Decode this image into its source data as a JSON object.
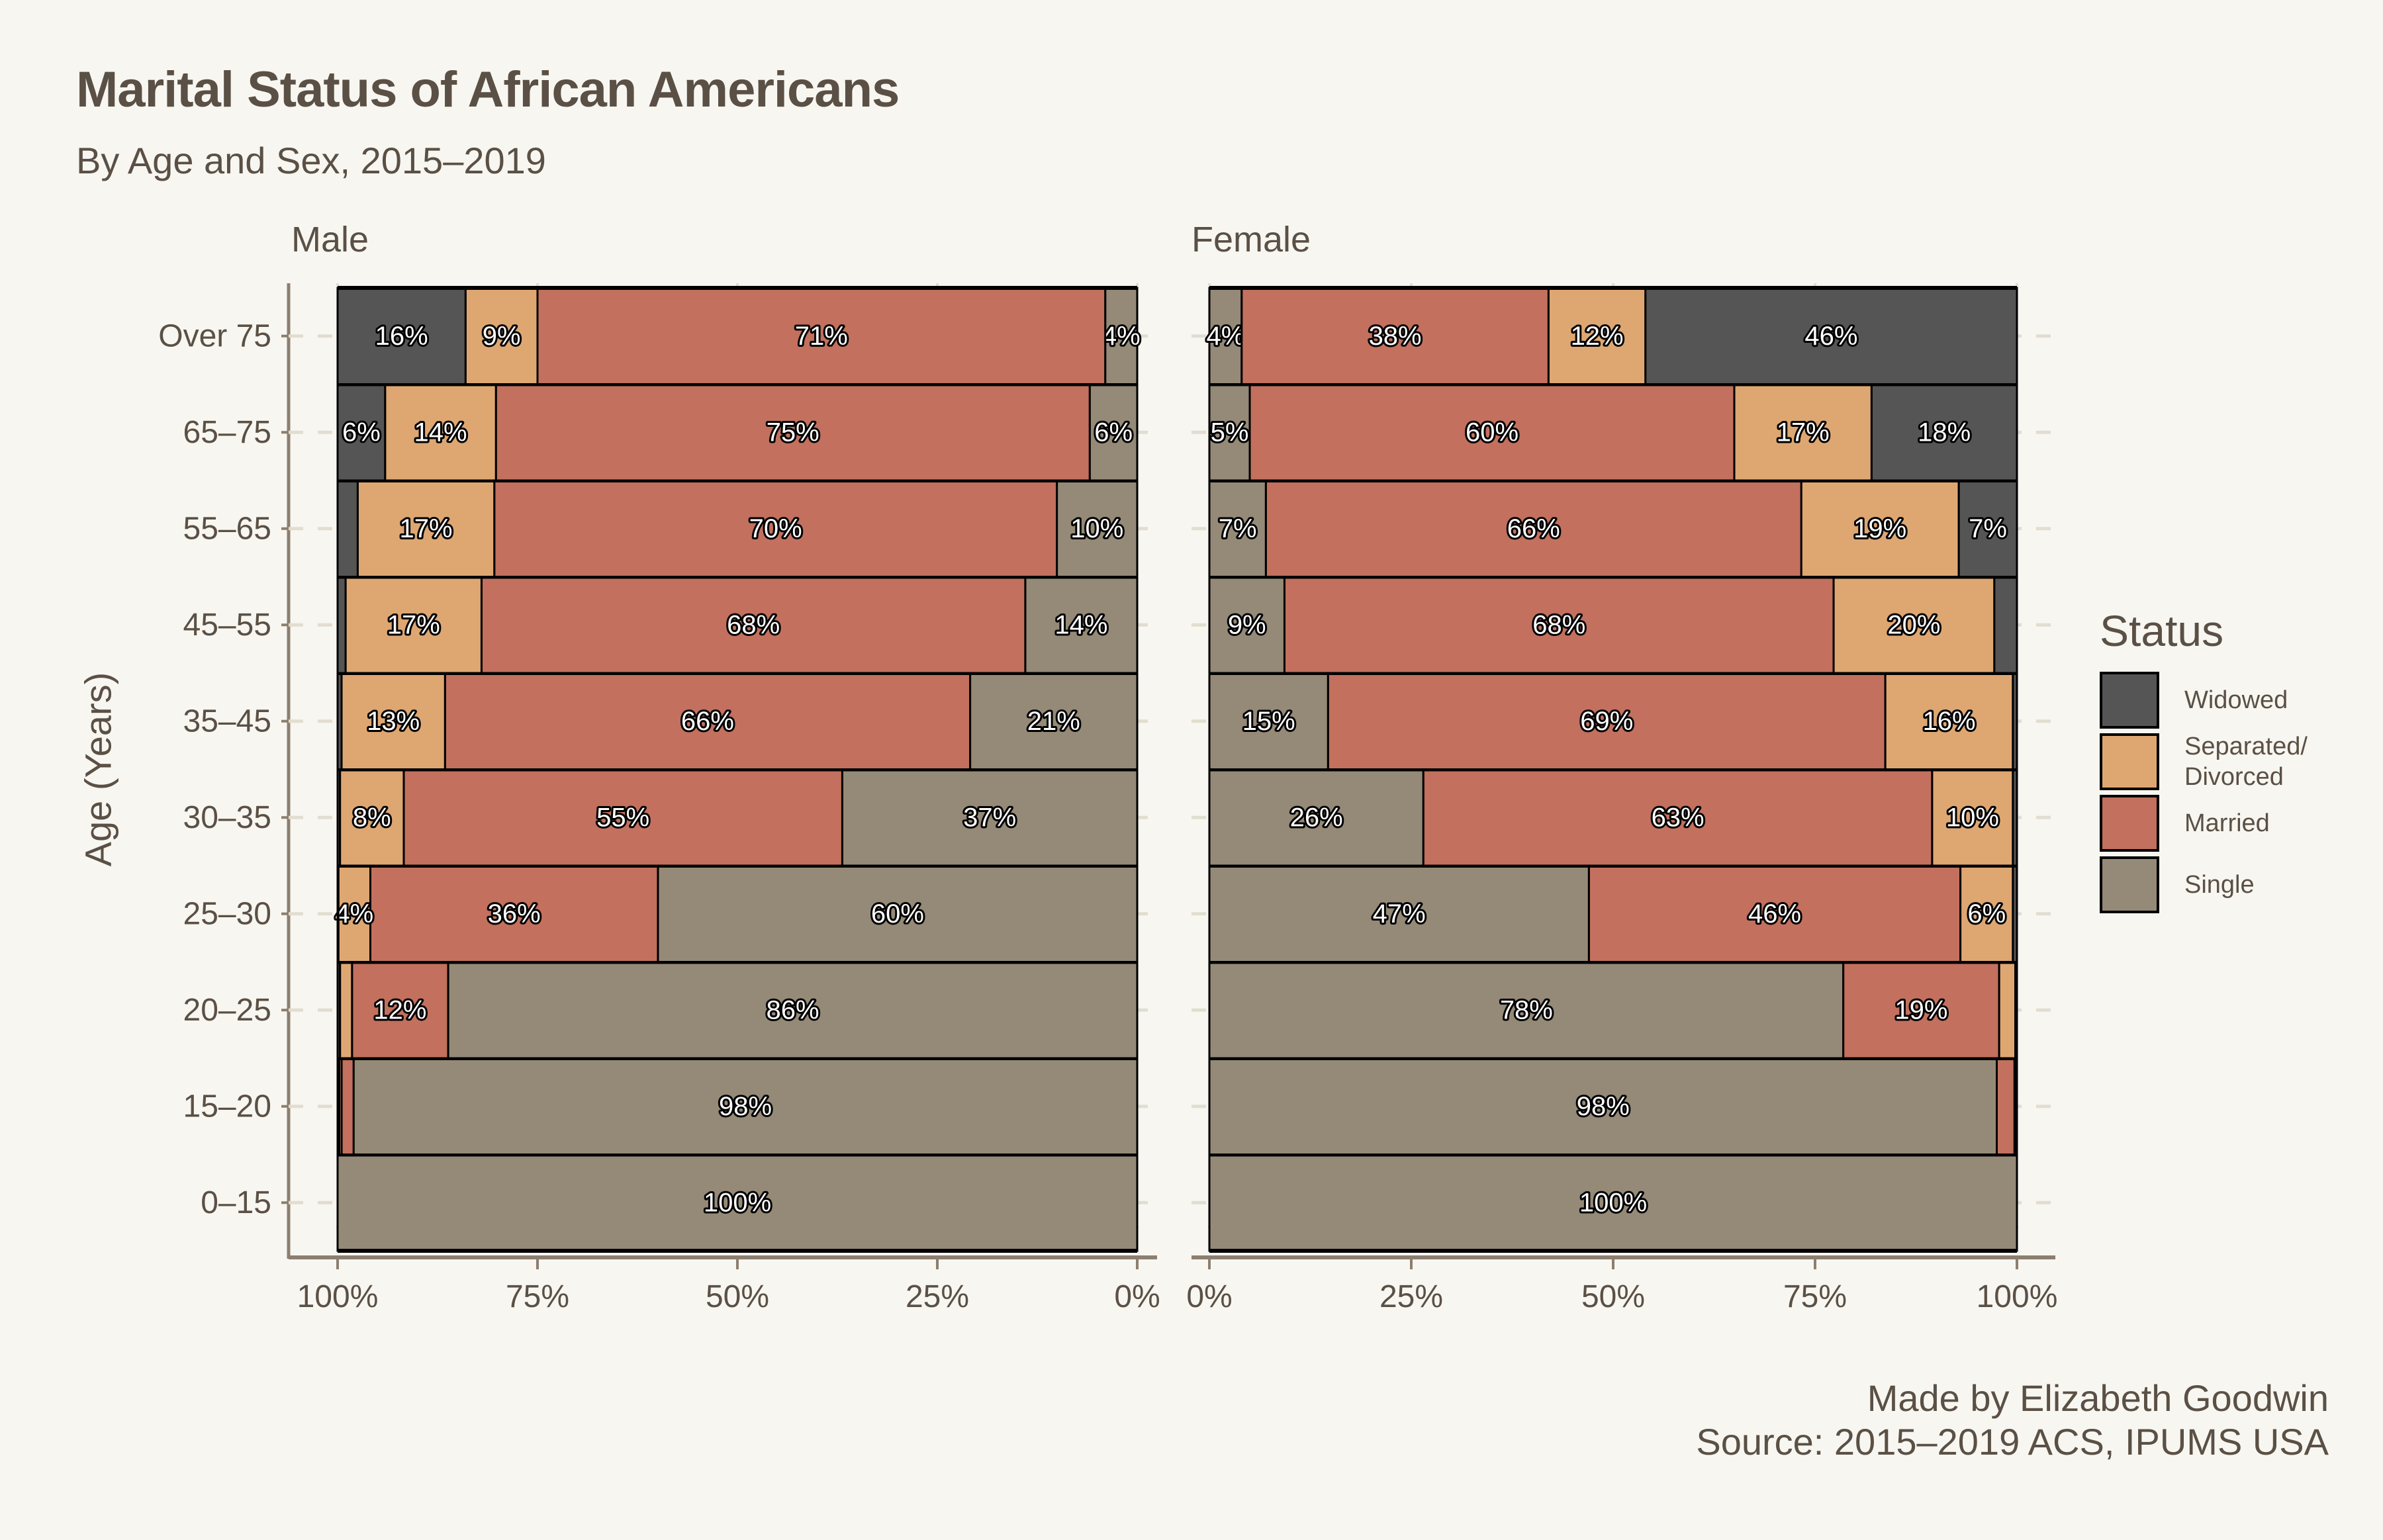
{
  "header": {
    "title": "Marital Status of African Americans",
    "subtitle": "By Age and Sex, 2015–2019"
  },
  "caption": {
    "line1": "Made by Elizabeth Goodwin",
    "line2": "Source: 2015–2019 ACS, IPUMS USA"
  },
  "chart_data": {
    "type": "bar",
    "orientation": "horizontal-stacked-100",
    "title": "Marital Status of African Americans",
    "subtitle": "By Age and Sex, 2015–2019",
    "ylabel": "Age (Years)",
    "xlabel": "",
    "categories": [
      "0–15",
      "15–20",
      "20–25",
      "25–30",
      "30–35",
      "35–45",
      "45–55",
      "55–65",
      "65–75",
      "Over 75"
    ],
    "statuses": [
      "Single",
      "Married",
      "Separated/Divorced",
      "Widowed"
    ],
    "colors": {
      "Widowed": "#555555",
      "Separated/Divorced": "#dea772",
      "Married": "#c3705e",
      "Single": "#958a77"
    },
    "legend": {
      "title": "Status",
      "position": "right",
      "items": [
        "Widowed",
        "Separated/\nDivorced",
        "Married",
        "Single"
      ]
    },
    "panels": [
      {
        "name": "Male",
        "direction": "reversed",
        "x_ticks": [
          "100%",
          "75%",
          "50%",
          "25%",
          "0%"
        ],
        "xlim": [
          100,
          0
        ],
        "series": [
          {
            "name": "Single",
            "values": [
              100,
              98,
              86,
              60,
              37,
              21,
              14,
              10,
              6,
              4
            ]
          },
          {
            "name": "Married",
            "values": [
              0,
              1.5,
              12,
              36,
              55,
              66,
              68,
              70,
              75,
              71
            ]
          },
          {
            "name": "Separated/Divorced",
            "values": [
              0,
              0.3,
              1.5,
              4,
              8,
              13,
              17,
              17,
              14,
              9
            ]
          },
          {
            "name": "Widowed",
            "values": [
              0,
              0.2,
              0.3,
              0.1,
              0.3,
              0.5,
              1,
              2.5,
              6,
              16
            ]
          }
        ],
        "labels": [
          [
            "100%",
            "",
            "",
            ""
          ],
          [
            "98%",
            "",
            "",
            ""
          ],
          [
            "86%",
            "12%",
            "",
            ""
          ],
          [
            "60%",
            "36%",
            "4%",
            ""
          ],
          [
            "37%",
            "55%",
            "8%",
            ""
          ],
          [
            "21%",
            "66%",
            "13%",
            ""
          ],
          [
            "14%",
            "68%",
            "17%",
            ""
          ],
          [
            "10%",
            "70%",
            "17%",
            ""
          ],
          [
            "6%",
            "75%",
            "14%",
            "6%"
          ],
          [
            "4%",
            "71%",
            "9%",
            "16%"
          ]
        ]
      },
      {
        "name": "Female",
        "direction": "normal",
        "x_ticks": [
          "0%",
          "25%",
          "50%",
          "75%",
          "100%"
        ],
        "xlim": [
          0,
          100
        ],
        "series": [
          {
            "name": "Single",
            "values": [
              100,
              97.5,
              78.5,
              47,
              26.5,
              14.7,
              9.3,
              7,
              5,
              4
            ]
          },
          {
            "name": "Married",
            "values": [
              0,
              2.2,
              19.3,
              46,
              63,
              69,
              68,
              66.3,
              60,
              38
            ]
          },
          {
            "name": "Separated/Divorced",
            "values": [
              0,
              0.2,
              2,
              6.5,
              10,
              15.8,
              19.9,
              19.5,
              17,
              12
            ]
          },
          {
            "name": "Widowed",
            "values": [
              0,
              0.1,
              0.2,
              0.5,
              0.5,
              0.5,
              2.8,
              7.2,
              18,
              46
            ]
          }
        ],
        "labels": [
          [
            "100%",
            "",
            "",
            ""
          ],
          [
            "98%",
            "",
            "",
            ""
          ],
          [
            "78%",
            "19%",
            "",
            ""
          ],
          [
            "47%",
            "46%",
            "6%",
            ""
          ],
          [
            "26%",
            "63%",
            "10%",
            ""
          ],
          [
            "15%",
            "69%",
            "16%",
            ""
          ],
          [
            "9%",
            "68%",
            "20%",
            ""
          ],
          [
            "7%",
            "66%",
            "19%",
            "7%"
          ],
          [
            "5%",
            "60%",
            "17%",
            "18%"
          ],
          [
            "4%",
            "38%",
            "12%",
            "46%"
          ]
        ]
      }
    ],
    "grid": true
  }
}
